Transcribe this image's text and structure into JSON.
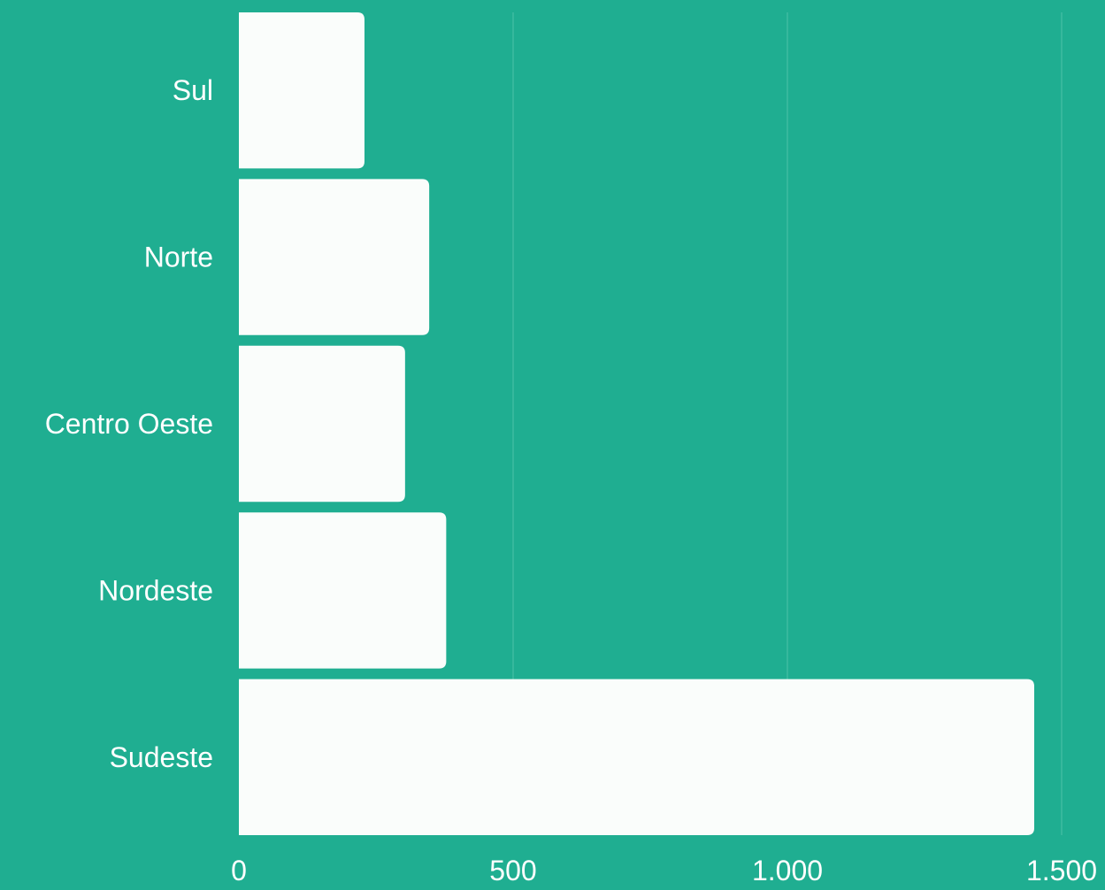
{
  "chart_data": {
    "type": "bar",
    "orientation": "horizontal",
    "categories": [
      "Sul",
      "Norte",
      "Centro Oeste",
      "Nordeste",
      "Sudeste"
    ],
    "values": [
      229,
      347,
      303,
      378,
      1450
    ],
    "xlim": [
      0,
      1500
    ],
    "xticks": [
      0,
      500,
      1000,
      1500
    ],
    "xtick_labels": [
      "0",
      "500",
      "1.000",
      "1.500"
    ],
    "grid": "vertical",
    "title": "",
    "xlabel": "",
    "ylabel": "",
    "colors": {
      "background": "#1fae91",
      "bar": "#fafdfb",
      "text": "#ffffff",
      "grid": "#4dc2a9"
    }
  }
}
